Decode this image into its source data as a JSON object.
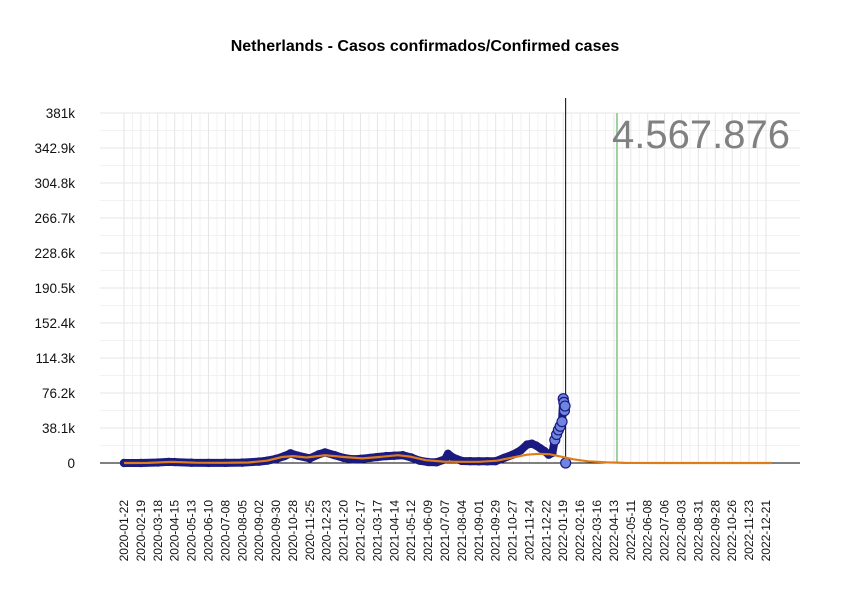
{
  "chart_data": {
    "type": "line",
    "title": "Netherlands - Casos confirmados/Confirmed cases",
    "total_label": "4.567.876",
    "xlabel": "",
    "ylabel": "",
    "ylim": [
      0,
      381000
    ],
    "xlim": [
      "2020-01-22",
      "2022-12-31"
    ],
    "grid": true,
    "legend": "none",
    "y_ticks": [
      0,
      38100,
      76200,
      114300,
      152400,
      190500,
      228600,
      266700,
      304800,
      342900,
      381000
    ],
    "y_tick_labels": [
      "0",
      "38.1k",
      "76.2k",
      "114.3k",
      "152.4k",
      "190.5k",
      "228.6k",
      "266.7k",
      "304.8k",
      "342.9k",
      "381k"
    ],
    "x_tick_labels": [
      "2020-01-22",
      "2020-02-19",
      "2020-03-18",
      "2020-04-15",
      "2020-05-13",
      "2020-06-10",
      "2020-07-08",
      "2020-08-05",
      "2020-09-02",
      "2020-09-30",
      "2020-10-28",
      "2020-11-25",
      "2020-12-23",
      "2021-01-20",
      "2021-02-17",
      "2021-03-17",
      "2021-04-14",
      "2021-05-12",
      "2021-06-09",
      "2021-07-07",
      "2021-08-04",
      "2021-09-01",
      "2021-09-29",
      "2021-10-27",
      "2021-11-24",
      "2021-12-22",
      "2022-01-19",
      "2022-02-16",
      "2022-03-16",
      "2022-04-13",
      "2022-05-11",
      "2022-06-08",
      "2022-07-06",
      "2022-08-03",
      "2022-08-31",
      "2022-09-28",
      "2022-10-26",
      "2022-11-23",
      "2022-12-21"
    ],
    "current_date": "2022-01-23",
    "marker_date": "2022-04-18",
    "series": [
      {
        "type": "scatter",
        "color": "#1a1a80",
        "x": [
          "2020-01-22",
          "2020-02-19",
          "2020-03-18",
          "2020-04-05",
          "2020-04-15",
          "2020-05-13",
          "2020-06-10",
          "2020-07-08",
          "2020-08-05",
          "2020-09-02",
          "2020-09-16",
          "2020-09-30",
          "2020-10-14",
          "2020-10-24",
          "2020-11-05",
          "2020-11-25",
          "2020-12-10",
          "2020-12-20",
          "2021-01-05",
          "2021-01-20",
          "2021-02-05",
          "2021-02-17",
          "2021-03-05",
          "2021-03-17",
          "2021-04-01",
          "2021-04-14",
          "2021-04-28",
          "2021-05-12",
          "2021-05-26",
          "2021-06-09",
          "2021-06-23",
          "2021-07-07",
          "2021-07-12",
          "2021-07-20",
          "2021-08-04",
          "2021-08-18",
          "2021-09-01",
          "2021-09-15",
          "2021-09-29",
          "2021-10-13",
          "2021-10-27",
          "2021-11-10",
          "2021-11-20",
          "2021-11-28",
          "2021-12-05",
          "2021-12-12",
          "2021-12-19",
          "2021-12-26",
          "2022-01-01",
          "2022-01-05",
          "2022-01-08",
          "2022-01-11",
          "2022-01-14",
          "2022-01-17",
          "2022-01-19",
          "2022-01-20",
          "2022-01-21",
          "2022-01-22",
          "2022-01-23"
        ],
        "y": [
          0,
          0,
          500,
          1200,
          1000,
          300,
          100,
          150,
          400,
          1500,
          2600,
          4500,
          7500,
          10500,
          8000,
          5000,
          9500,
          11500,
          8500,
          5500,
          4000,
          4500,
          5500,
          6500,
          7500,
          8000,
          8500,
          6000,
          2500,
          1000,
          800,
          4000,
          10000,
          6000,
          2200,
          2000,
          1800,
          1800,
          2000,
          5500,
          9000,
          14000,
          20000,
          21000,
          19000,
          16000,
          13000,
          9000,
          11000,
          25000,
          31000,
          36000,
          40000,
          45000,
          70000,
          66000,
          57000,
          62000,
          0
        ]
      },
      {
        "type": "line",
        "color": "#e07b1a",
        "x": [
          "2020-01-22",
          "2020-03-01",
          "2020-04-10",
          "2020-05-20",
          "2020-07-01",
          "2020-08-15",
          "2020-09-15",
          "2020-10-10",
          "2020-10-28",
          "2020-11-20",
          "2020-12-20",
          "2021-01-20",
          "2021-02-20",
          "2021-03-20",
          "2021-04-20",
          "2021-05-10",
          "2021-06-05",
          "2021-07-05",
          "2021-08-01",
          "2021-09-01",
          "2021-10-01",
          "2021-10-27",
          "2021-11-20",
          "2021-12-10",
          "2021-12-28",
          "2022-01-15",
          "2022-02-05",
          "2022-03-01",
          "2022-04-01",
          "2022-05-01",
          "2022-07-01",
          "2022-09-01",
          "2022-12-31"
        ],
        "y": [
          0,
          100,
          1200,
          300,
          200,
          500,
          2500,
          6500,
          7500,
          6000,
          8500,
          6500,
          5000,
          6500,
          8500,
          7000,
          3000,
          1500,
          1300,
          1300,
          2500,
          6000,
          9000,
          10000,
          9500,
          7000,
          4000,
          1800,
          600,
          150,
          20,
          5,
          0
        ]
      }
    ]
  }
}
